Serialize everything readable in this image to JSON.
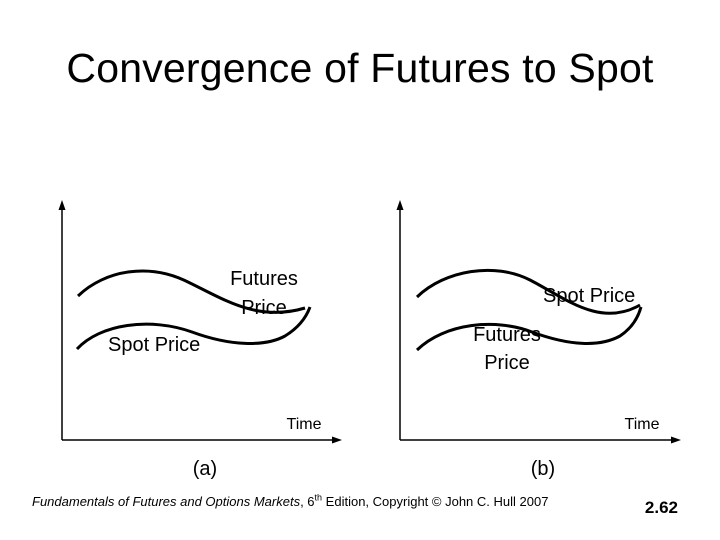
{
  "slide": {
    "title": "Convergence of Futures to Spot",
    "number": "2.62"
  },
  "panel_a": {
    "caption": "(a)",
    "axis_label": "Time",
    "futures_label_line1": "Futures",
    "futures_label_line2": "Price",
    "spot_label": "Spot Price"
  },
  "panel_b": {
    "caption": "(b)",
    "axis_label": "Time",
    "futures_label_line1": "Futures",
    "futures_label_line2": "Price",
    "spot_label": "Spot Price"
  },
  "footer": {
    "book_title": "Fundamentals of Futures and Options Markets",
    "edition_prefix": ", 6",
    "edition_sup": "th",
    "rest": " Edition, Copyright © John  C. Hull 2007"
  }
}
